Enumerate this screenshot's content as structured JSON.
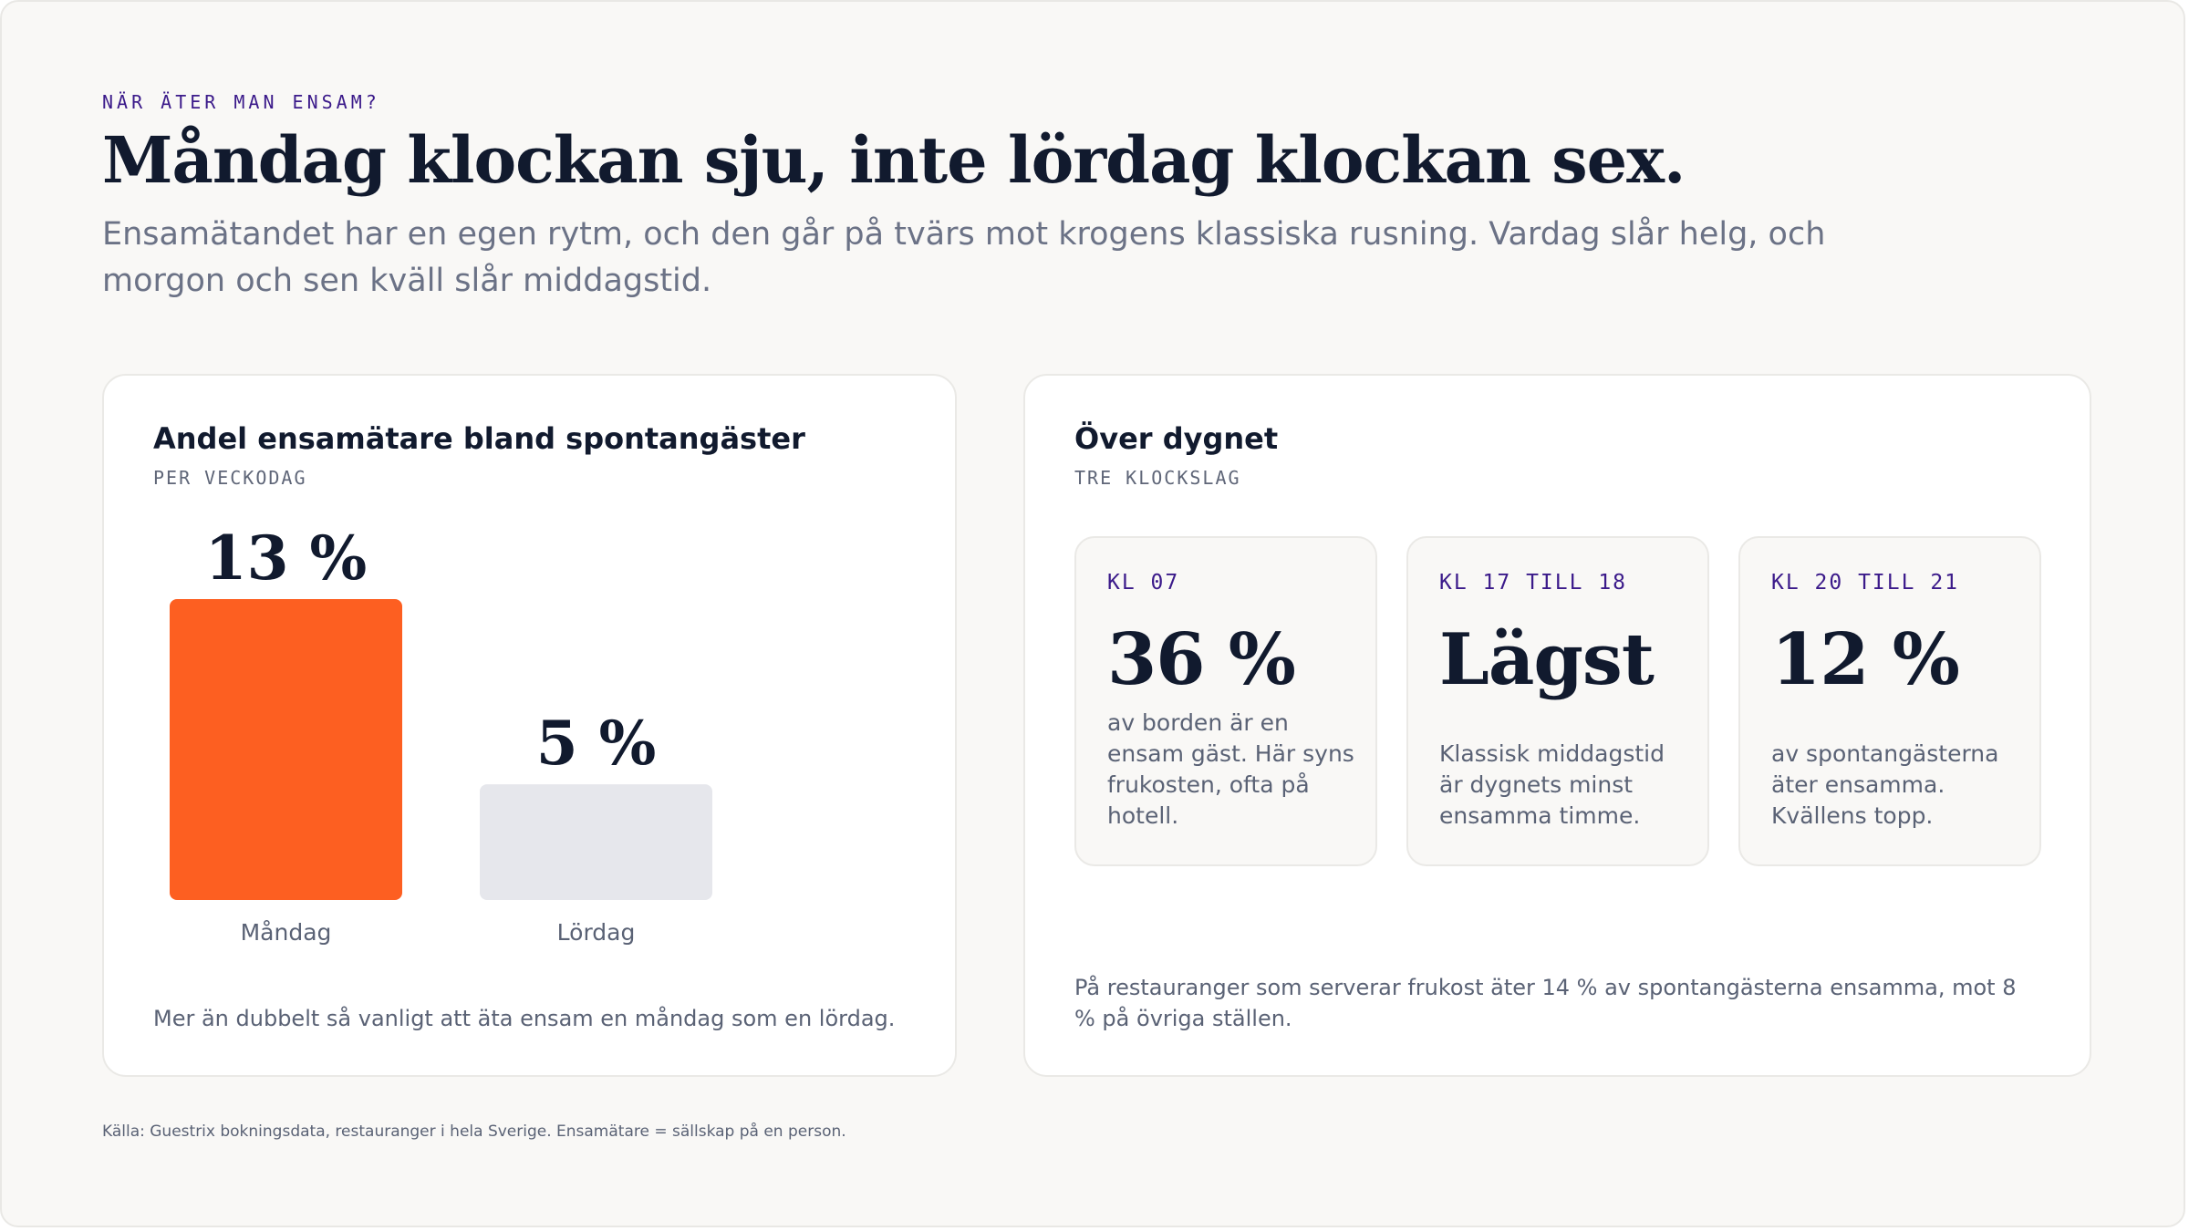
{
  "eyebrow": "NÄR ÄTER MAN ENSAM?",
  "headline": "Måndag klockan sju, inte lördag klockan sex.",
  "lede": "Ensamätandet har en egen rytm, och den går på tvärs mot krogens klassiska rusning. Vardag slår helg, och morgon och sen kväll slår middagstid.",
  "left_card": {
    "title": "Andel ensamätare bland spontangäster",
    "subtitle": "PER VECKODAG",
    "note": "Mer än dubbelt så vanligt att äta ensam en måndag som en lördag."
  },
  "chart_data": {
    "type": "bar",
    "title": "Andel ensamätare bland spontangäster",
    "subtitle": "PER VECKODAG",
    "categories": [
      "Måndag",
      "Lördag"
    ],
    "values": [
      13,
      5
    ],
    "value_labels": [
      "13 %",
      "5 %"
    ],
    "unit": "%",
    "colors": [
      "#fd5f21",
      "#e6e7ec"
    ],
    "ylim": [
      0,
      13
    ],
    "grid": false
  },
  "right_card": {
    "title": "Över dygnet",
    "subtitle": "TRE KLOCKSLAG",
    "tiles": [
      {
        "label": "KL 07",
        "value": "36 %",
        "text": "av borden är en ensam gäst. Här syns frukosten, ofta på hotell."
      },
      {
        "label": "KL 17 TILL 18",
        "value": "Lägst",
        "text": "Klassisk middagstid är dygnets minst ensamma timme."
      },
      {
        "label": "KL 20 TILL 21",
        "value": "12 %",
        "text": "av spontangästerna äter ensamma. Kvällens topp."
      }
    ],
    "note": "På restauranger som serverar frukost äter 14 % av spontangästerna ensamma, mot 8 % på övriga ställen."
  },
  "source": "Källa: Guestrix bokningsdata, restauranger i hela Sverige. Ensamätare = sällskap på en person.",
  "colors": {
    "accent": "#fd5f21",
    "muted_bar": "#e6e7ec",
    "eyebrow": "#3b1a8a",
    "ink": "#111a2e"
  }
}
